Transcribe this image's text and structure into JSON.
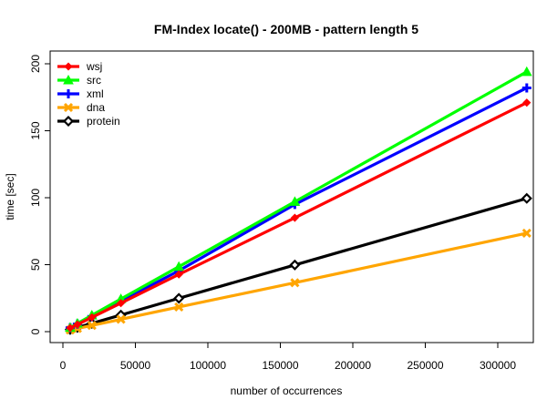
{
  "chart_data": {
    "type": "line",
    "title": "FM-Index locate() - 200MB - pattern length 5",
    "xlabel": "number of occurrences",
    "ylabel": "time [sec]",
    "xlim": [
      0,
      320000
    ],
    "ylim": [
      0,
      200
    ],
    "x_ticks": [
      {
        "value": 0,
        "label": "0"
      },
      {
        "value": 50000,
        "label": "50000"
      },
      {
        "value": 100000,
        "label": "100000"
      },
      {
        "value": 150000,
        "label": "150000"
      },
      {
        "value": 200000,
        "label": "200000"
      },
      {
        "value": 250000,
        "label": "250000"
      },
      {
        "value": 300000,
        "label": "300000"
      }
    ],
    "y_ticks": [
      {
        "value": 0,
        "label": "0"
      },
      {
        "value": 50,
        "label": "50"
      },
      {
        "value": 100,
        "label": "100"
      },
      {
        "value": 150,
        "label": "150"
      },
      {
        "value": 200,
        "label": "200"
      }
    ],
    "grid": false,
    "legend_position": "top-left",
    "x": [
      5000,
      10000,
      20000,
      40000,
      80000,
      160000,
      320000
    ],
    "series": [
      {
        "name": "wsj",
        "color": "#ff0000",
        "marker": "diamond-small",
        "values": [
          2.7,
          5.3,
          10.7,
          21.3,
          42.7,
          85,
          171
        ]
      },
      {
        "name": "src",
        "color": "#00ff00",
        "marker": "triangle",
        "values": [
          3.0,
          6.1,
          12.2,
          24.4,
          48.5,
          97,
          194
        ]
      },
      {
        "name": "xml",
        "color": "#0000ff",
        "marker": "plus",
        "values": [
          2.9,
          5.7,
          11.4,
          22.8,
          45.5,
          95,
          182
        ]
      },
      {
        "name": "dna",
        "color": "#ffa500",
        "marker": "cross",
        "values": [
          1.2,
          2.3,
          4.6,
          9.2,
          18.4,
          36.5,
          73.5
        ]
      },
      {
        "name": "protein",
        "color": "#000000",
        "marker": "diamond",
        "values": [
          1.6,
          3.1,
          6.2,
          12.4,
          24.9,
          49.8,
          99.5
        ]
      }
    ]
  }
}
